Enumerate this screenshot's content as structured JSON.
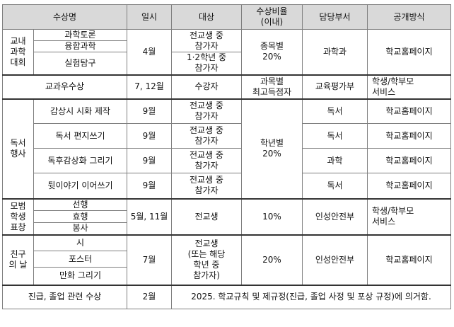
{
  "headers": [
    "수상명",
    "일시",
    "대상",
    "수상비율\n(이내)",
    "담당부서",
    "공개방식"
  ],
  "science": {
    "group": "교내\n과학\n대회",
    "items": [
      "과학토론",
      "융합과학",
      "실험탐구"
    ],
    "date": "4월",
    "target1": "전교생 중\n참가자",
    "target2": "1·2학년 중\n참가자",
    "ratio": "종목별\n20%",
    "dept": "과학과",
    "disclosure": "학교홈페이지"
  },
  "subject": {
    "name": "교과우수상",
    "date": "7, 12월",
    "target": "수강자",
    "ratio": "과목별\n최고득점자",
    "dept": "교육평가부",
    "disclosure": "학생/학부모\n서비스"
  },
  "reading": {
    "group": "독서\n행사",
    "ratio": "학년별\n20%",
    "items": [
      {
        "name": "감상시 시화 제작",
        "date": "9월",
        "target": "전교생 중\n참가자",
        "dept": "독서",
        "disclosure": "학교홈페이지"
      },
      {
        "name": "독서 편지쓰기",
        "date": "9월",
        "target": "전교생 중\n참가자",
        "dept": "독서",
        "disclosure": "학교홈페이지"
      },
      {
        "name": "독후감상화 그리기",
        "date": "9월",
        "target": "전교생 중\n참가자",
        "dept": "과학",
        "disclosure": "학교홈페이지"
      },
      {
        "name": "뒷이야기 이어쓰기",
        "date": "9월",
        "target": "전교생 중\n참가자",
        "dept": "독서",
        "disclosure": "학교홈페이지"
      }
    ]
  },
  "model": {
    "group": "모범\n학생\n표창",
    "items": [
      "선행",
      "효행",
      "봉사"
    ],
    "date": "5월, 11월",
    "target": "전교생",
    "ratio": "10%",
    "dept": "인성안전부",
    "disclosure": "학생/학부모\n서비스"
  },
  "friend": {
    "group": "친구\n의 날",
    "items": [
      "시",
      "포스터",
      "만화 그리기"
    ],
    "date": "7월",
    "target": "전교생\n(또는 해당\n학년 중\n참가자)",
    "ratio": "20%",
    "dept": "인성안전부",
    "disclosure": "학교홈페이지"
  },
  "promotion": {
    "name": "진급, 졸업 관련 수상",
    "date": "2월",
    "note": "2025. 학교규칙 및 제규정(진급, 졸업 사정 및 포상 규정)에 의거함."
  }
}
